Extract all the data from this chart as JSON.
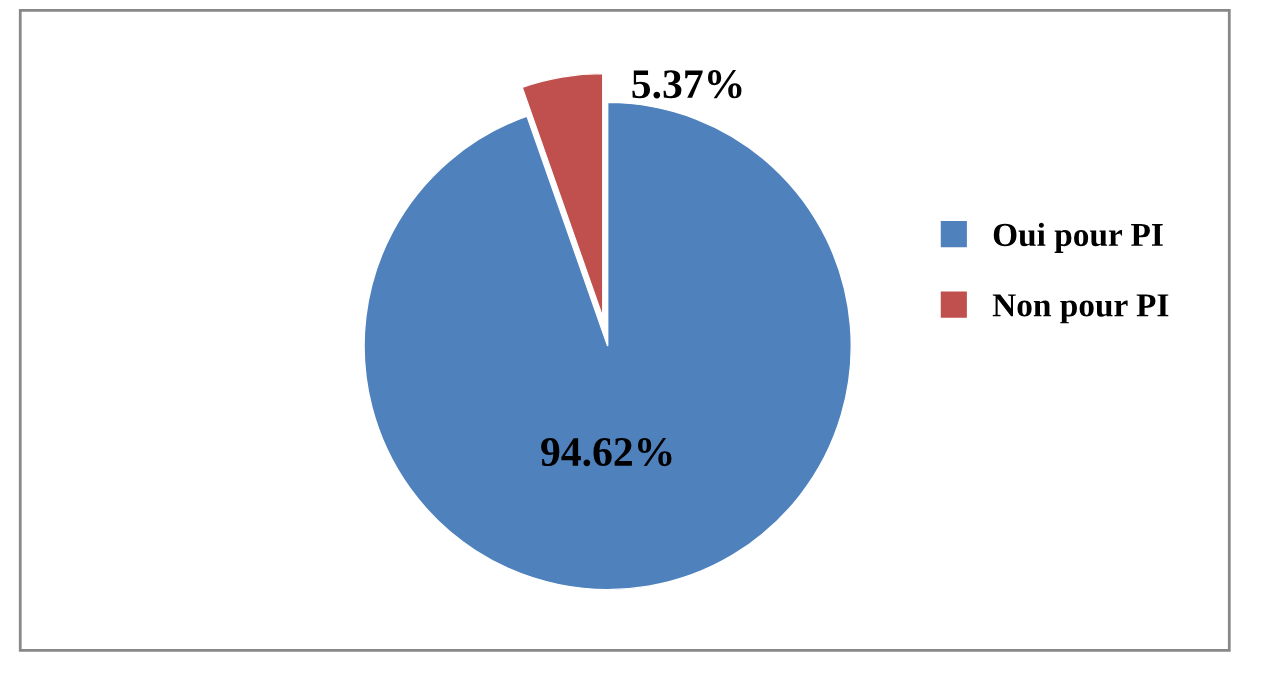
{
  "chart_data": {
    "type": "pie",
    "categories": [
      "Oui pour PI",
      "Non pour PI"
    ],
    "values": [
      94.62,
      5.37
    ],
    "colors": [
      "#4f81bd",
      "#c0504d"
    ],
    "value_labels": [
      "94.62%",
      "5.37%"
    ],
    "legend": "right"
  }
}
